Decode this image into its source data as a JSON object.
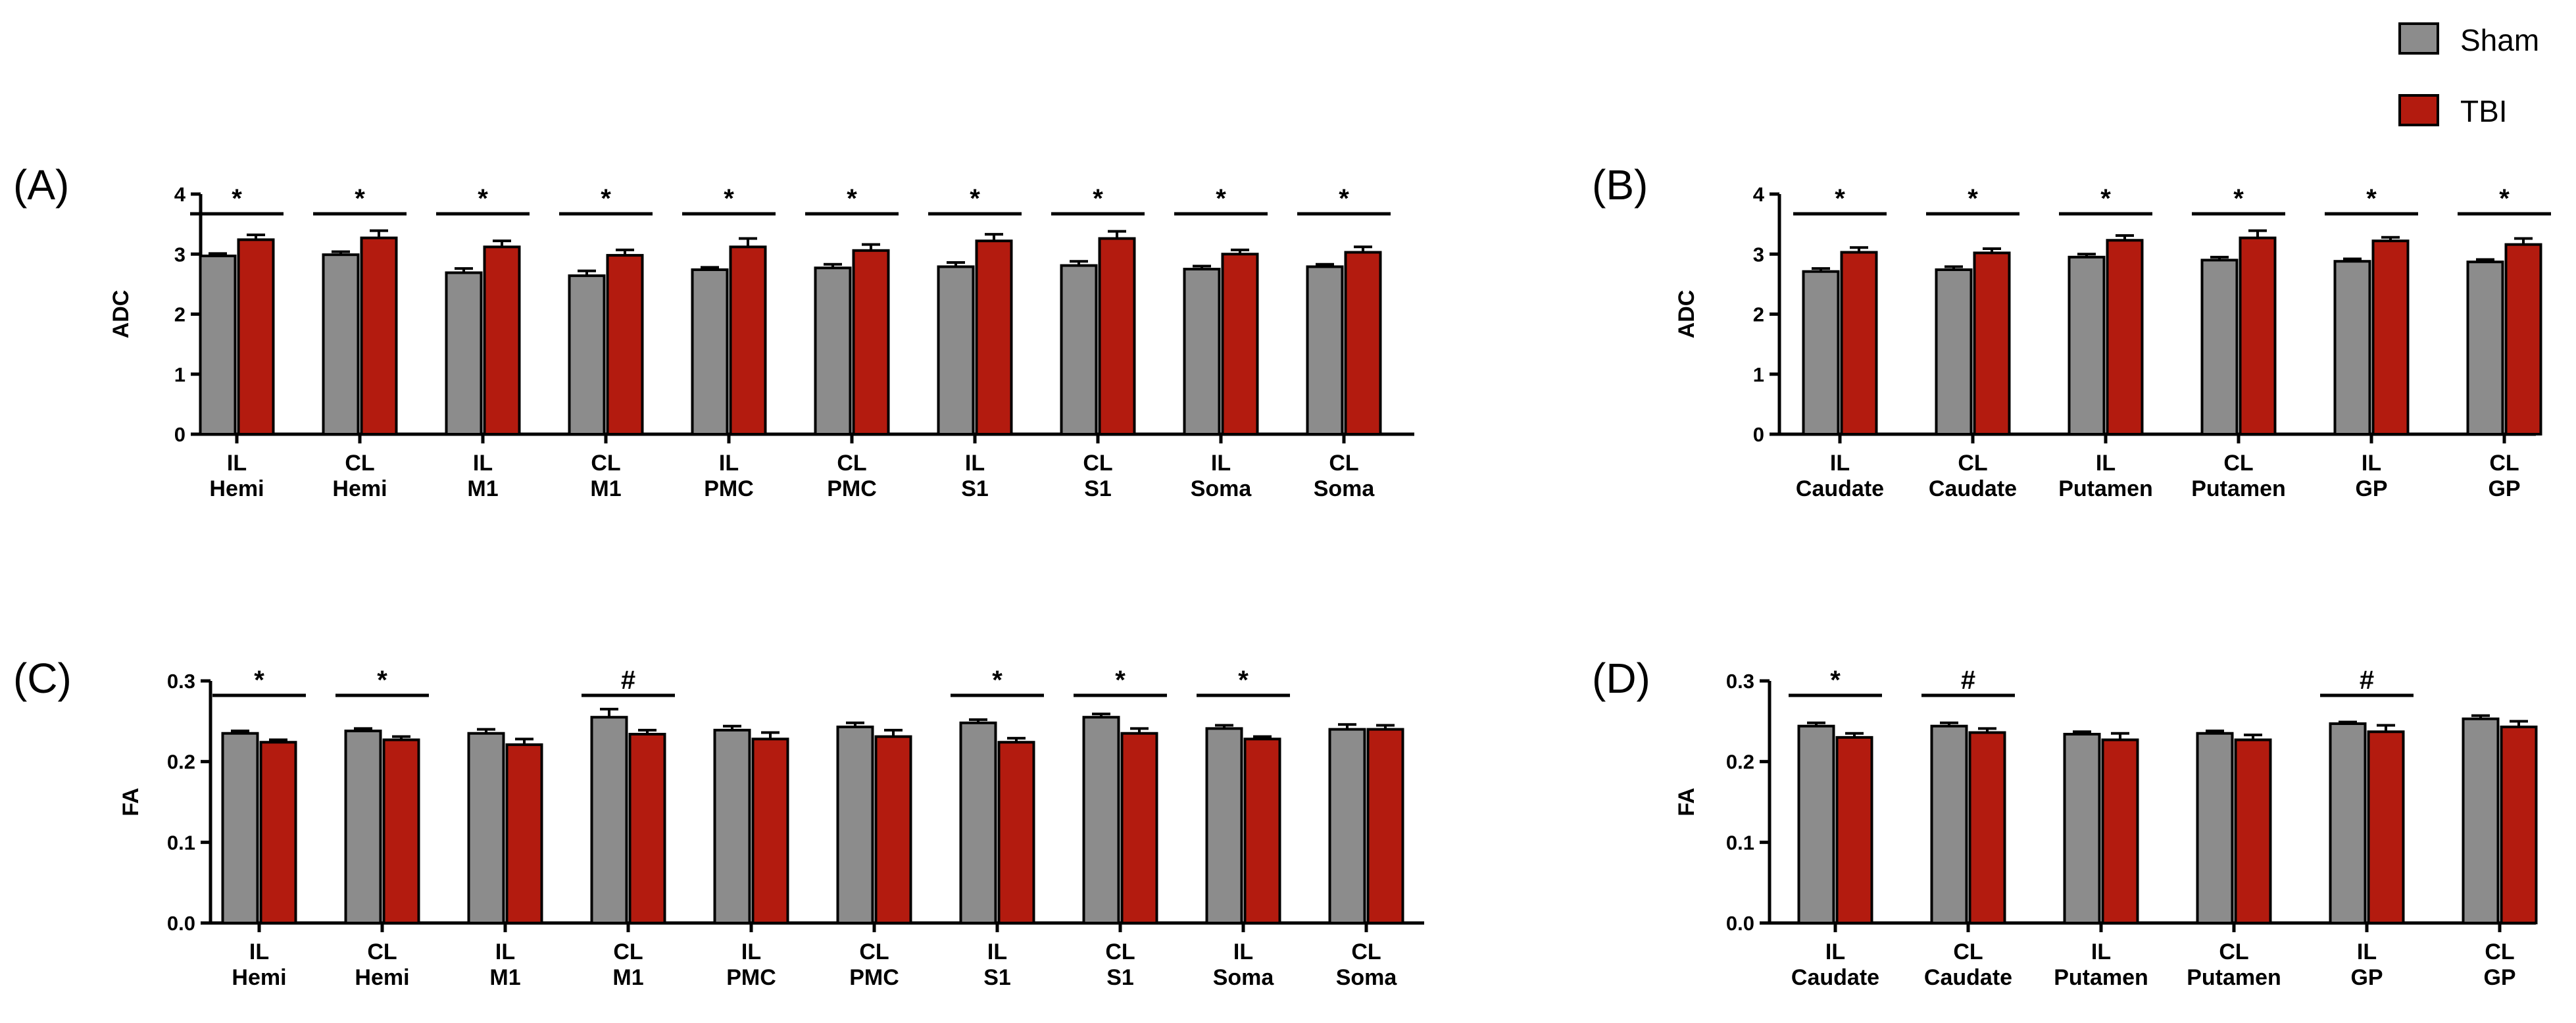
{
  "legend": {
    "items": [
      {
        "label": "Sham",
        "color": "#8c8c8c"
      },
      {
        "label": "TBI",
        "color": "#b31b0f"
      }
    ]
  },
  "colors": {
    "sham": "#8c8c8c",
    "tbi": "#b31b0f",
    "axis": "#000000"
  },
  "chart_data": [
    {
      "type": "bar",
      "panel_label": "(A)",
      "ylabel": "ADC",
      "ylim": [
        0,
        4
      ],
      "yticks": [
        "0",
        "1",
        "2",
        "3",
        "4"
      ],
      "categories": [
        [
          "IL",
          "Hemi"
        ],
        [
          "CL",
          "Hemi"
        ],
        [
          "IL",
          "M1"
        ],
        [
          "CL",
          "M1"
        ],
        [
          "IL",
          "PMC"
        ],
        [
          "CL",
          "PMC"
        ],
        [
          "IL",
          "S1"
        ],
        [
          "CL",
          "S1"
        ],
        [
          "IL",
          "Soma"
        ],
        [
          "CL",
          "Soma"
        ]
      ],
      "series": [
        {
          "name": "Sham",
          "values": [
            2.97,
            2.99,
            2.69,
            2.64,
            2.74,
            2.77,
            2.79,
            2.81,
            2.75,
            2.79
          ],
          "errors": [
            0.04,
            0.05,
            0.07,
            0.08,
            0.04,
            0.06,
            0.07,
            0.07,
            0.05,
            0.04
          ]
        },
        {
          "name": "TBI",
          "values": [
            3.24,
            3.27,
            3.12,
            2.98,
            3.12,
            3.06,
            3.22,
            3.26,
            3.0,
            3.03
          ],
          "errors": [
            0.08,
            0.12,
            0.1,
            0.09,
            0.14,
            0.1,
            0.11,
            0.12,
            0.07,
            0.09
          ]
        }
      ],
      "significance": [
        "*",
        "*",
        "*",
        "*",
        "*",
        "*",
        "*",
        "*",
        "*",
        "*"
      ]
    },
    {
      "type": "bar",
      "panel_label": "(B)",
      "ylabel": "ADC",
      "ylim": [
        0,
        4
      ],
      "yticks": [
        "0",
        "1",
        "2",
        "3",
        "4"
      ],
      "categories": [
        [
          "IL",
          "Caudate"
        ],
        [
          "CL",
          "Caudate"
        ],
        [
          "IL",
          "Putamen"
        ],
        [
          "CL",
          "Putamen"
        ],
        [
          "IL",
          "GP"
        ],
        [
          "CL",
          "GP"
        ]
      ],
      "series": [
        {
          "name": "Sham",
          "values": [
            2.71,
            2.74,
            2.95,
            2.9,
            2.88,
            2.87
          ],
          "errors": [
            0.05,
            0.05,
            0.05,
            0.05,
            0.04,
            0.04
          ]
        },
        {
          "name": "TBI",
          "values": [
            3.03,
            3.02,
            3.23,
            3.27,
            3.22,
            3.16
          ],
          "errors": [
            0.08,
            0.07,
            0.08,
            0.12,
            0.06,
            0.1
          ]
        }
      ],
      "significance": [
        "*",
        "*",
        "*",
        "*",
        "*",
        "*"
      ]
    },
    {
      "type": "bar",
      "panel_label": "(C)",
      "ylabel": "FA",
      "ylim": [
        0,
        0.3
      ],
      "yticks": [
        "0.0",
        "0.1",
        "0.2",
        "0.3"
      ],
      "categories": [
        [
          "IL",
          "Hemi"
        ],
        [
          "CL",
          "Hemi"
        ],
        [
          "IL",
          "M1"
        ],
        [
          "CL",
          "M1"
        ],
        [
          "IL",
          "PMC"
        ],
        [
          "CL",
          "PMC"
        ],
        [
          "IL",
          "S1"
        ],
        [
          "CL",
          "S1"
        ],
        [
          "IL",
          "Soma"
        ],
        [
          "CL",
          "Soma"
        ]
      ],
      "series": [
        {
          "name": "Sham",
          "values": [
            0.235,
            0.238,
            0.235,
            0.255,
            0.239,
            0.243,
            0.248,
            0.255,
            0.241,
            0.24
          ],
          "errors": [
            0.003,
            0.003,
            0.005,
            0.01,
            0.005,
            0.005,
            0.004,
            0.004,
            0.004,
            0.006
          ]
        },
        {
          "name": "TBI",
          "values": [
            0.224,
            0.227,
            0.221,
            0.234,
            0.228,
            0.231,
            0.224,
            0.235,
            0.228,
            0.24
          ],
          "errors": [
            0.003,
            0.004,
            0.007,
            0.005,
            0.008,
            0.008,
            0.005,
            0.006,
            0.003,
            0.005
          ]
        }
      ],
      "significance": [
        "*",
        "*",
        "",
        "#",
        "",
        "",
        "*",
        "*",
        "*",
        ""
      ]
    },
    {
      "type": "bar",
      "panel_label": "(D)",
      "ylabel": "FA",
      "ylim": [
        0,
        0.3
      ],
      "yticks": [
        "0.0",
        "0.1",
        "0.2",
        "0.3"
      ],
      "categories": [
        [
          "IL",
          "Caudate"
        ],
        [
          "CL",
          "Caudate"
        ],
        [
          "IL",
          "Putamen"
        ],
        [
          "CL",
          "Putamen"
        ],
        [
          "IL",
          "GP"
        ],
        [
          "CL",
          "GP"
        ]
      ],
      "series": [
        {
          "name": "Sham",
          "values": [
            0.244,
            0.244,
            0.234,
            0.235,
            0.247,
            0.253
          ],
          "errors": [
            0.004,
            0.004,
            0.003,
            0.003,
            0.002,
            0.004
          ]
        },
        {
          "name": "TBI",
          "values": [
            0.23,
            0.236,
            0.227,
            0.227,
            0.237,
            0.243
          ],
          "errors": [
            0.005,
            0.005,
            0.008,
            0.006,
            0.008,
            0.007
          ]
        }
      ],
      "significance": [
        "*",
        "#",
        "",
        "",
        "#",
        ""
      ]
    }
  ]
}
